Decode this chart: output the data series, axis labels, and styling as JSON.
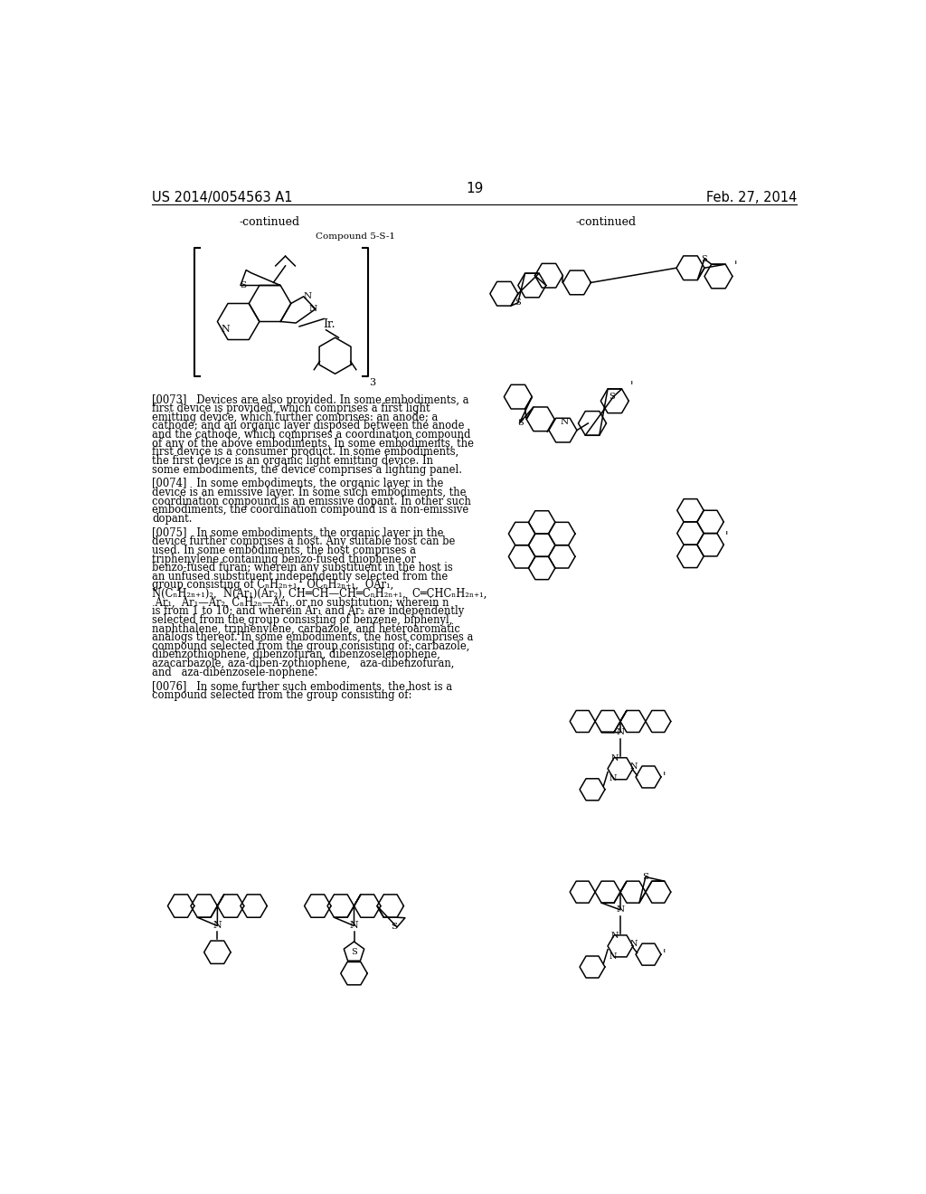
{
  "page_number": "19",
  "patent_number": "US 2014/0054563 A1",
  "patent_date": "Feb. 27, 2014",
  "background_color": "#ffffff",
  "text_color": "#000000",
  "continued_left": "-continued",
  "continued_right": "-continued",
  "compound_label": "Compound 5-S-1",
  "paragraph_0073": "[0073]   Devices are also provided. In some embodiments, a first device is provided, which comprises a first light emitting device, which further comprises: an anode; a cathode; and an organic layer disposed between the anode and the cathode, which comprises a coordination compound of any of the above embodiments. In some embodiments, the first device is a consumer product. In some embodiments, the first device is an organic light emitting device. In some embodiments, the device comprises a lighting panel.",
  "paragraph_0074": "[0074]   In some embodiments, the organic layer in the device is an emissive layer. In some such embodiments, the coordination compound is an emissive dopant. In other such embodiments, the coordination compound is a non-emissive dopant.",
  "paragraph_0075": "[0075]   In some embodiments, the organic layer in the device further comprises a host. Any suitable host can be used. In some embodiments, the host comprises a triphenylene containing benzo-fused thiophene or benzo-fused furan; wherein any substituent in the host is an unfused substituent independently selected from the group consisting of CₙH₂ₙ₊₁,  OCₙH₂ₙ₊₁,  OAr₁,  N(CₙH₂ₙ₊₁)₂,  N(Ar₁)(Ar₂), CH═CH—CH═CₙH₂ₙ₊₁,  C═CHCₙH₂ₙ₊₁,  Ar₁,  Ar₁—Ar₂, CₙH₂ₙ—Ar₁, or no substitution; wherein n is from 1 to 10; and wherein Ar₁ and Ar₂ are independently selected from the group consisting of benzene, biphenyl, naphthalene, triphenylene, carbazole, and heteroaromatic analogs thereof. In some embodiments, the host comprises a compound selected from the group consisting of: carbazole, dibenzothiophene, dibenzofuran, dibenzoselenophene, azacarbazole, aza-diben-zothiophene,   aza-dibenzofuran,   and   aza-dibenzosele-nophene.",
  "paragraph_0076": "[0076]   In some further such embodiments, the host is a compound selected from the group consisting of:"
}
